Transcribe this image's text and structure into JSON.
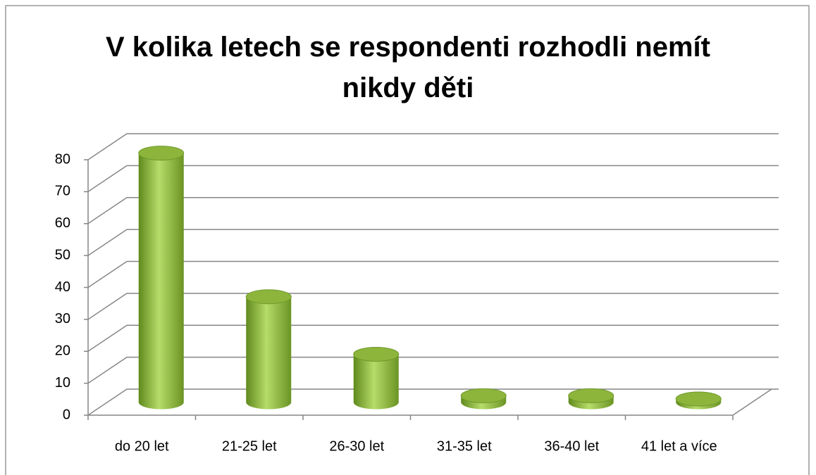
{
  "chart_data": {
    "type": "bar3d",
    "title": "V kolika letech se respondenti rozhodli nemít nikdy děti",
    "categories": [
      "do 20 let",
      "21-25 let",
      "26-30 let",
      "31-35 let",
      "36-40 let",
      "41 let a více"
    ],
    "values": [
      78,
      33,
      15,
      2,
      2,
      1
    ],
    "color": "#8db53c",
    "ylim": [
      0,
      80
    ],
    "yticks": [
      0,
      10,
      20,
      30,
      40,
      50,
      60,
      70,
      80
    ],
    "grid": true
  }
}
